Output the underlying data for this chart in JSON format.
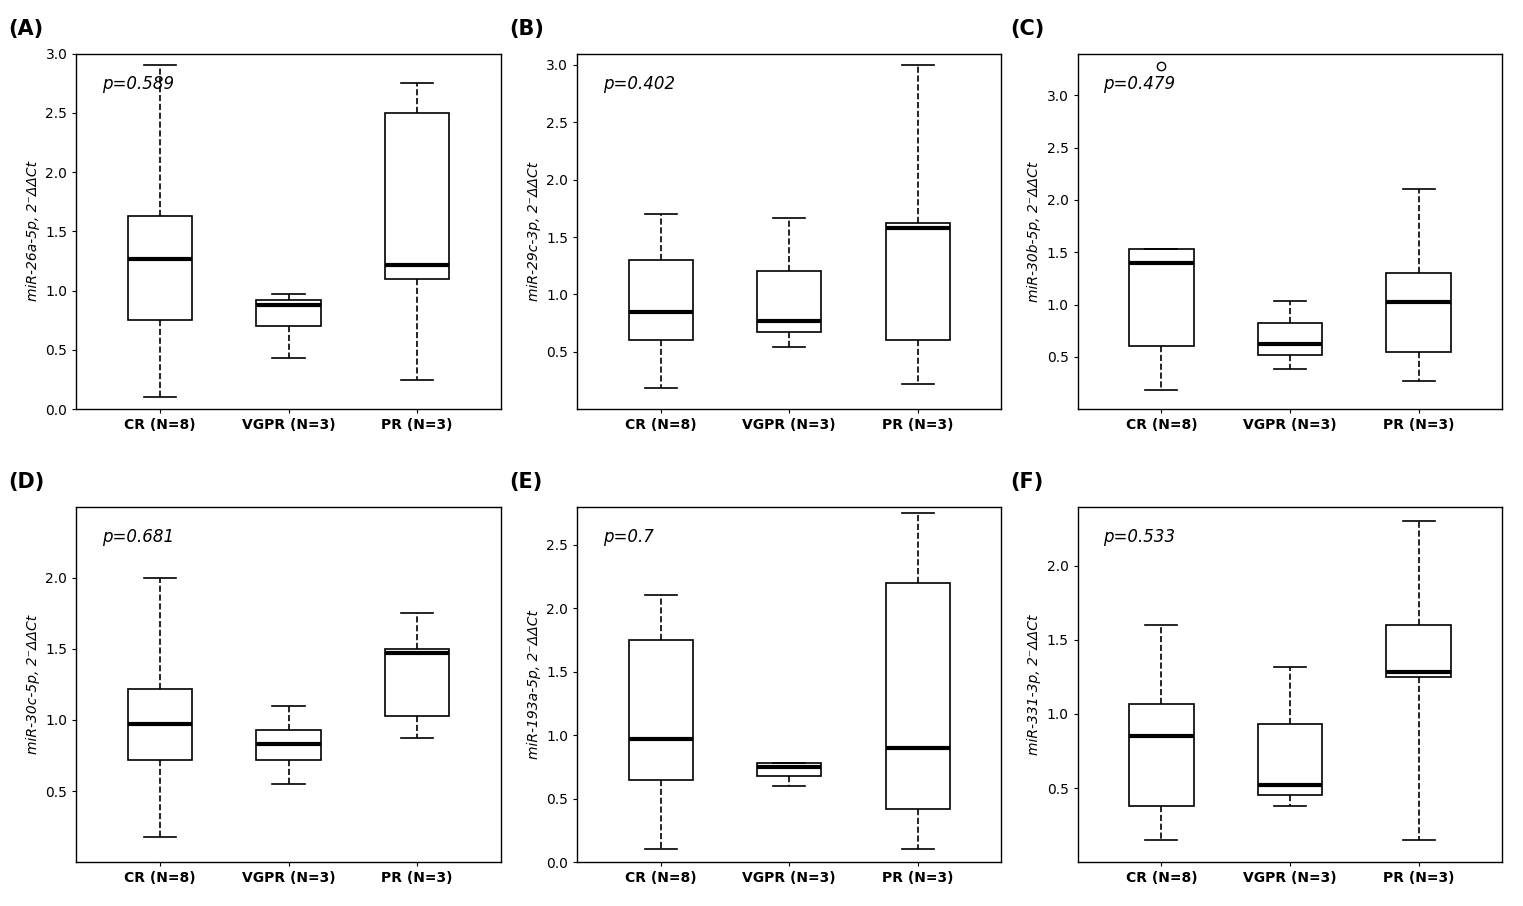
{
  "panels": [
    {
      "label": "(A)",
      "ylabel": "miR-26a-5p, 2⁻ΔΔCt",
      "pvalue": "p=0.589",
      "ylim": [
        0.0,
        3.0
      ],
      "yticks": [
        0.0,
        0.5,
        1.0,
        1.5,
        2.0,
        2.5,
        3.0
      ],
      "groups": {
        "CR": {
          "whislo": 0.1,
          "q1": 0.75,
          "med": 1.27,
          "q3": 1.63,
          "whishi": 2.9,
          "fliers": []
        },
        "VGPR": {
          "whislo": 0.43,
          "q1": 0.7,
          "med": 0.88,
          "q3": 0.92,
          "whishi": 0.97,
          "fliers": []
        },
        "PR": {
          "whislo": 0.25,
          "q1": 1.1,
          "med": 1.22,
          "q3": 2.5,
          "whishi": 2.75,
          "fliers": []
        }
      }
    },
    {
      "label": "(B)",
      "ylabel": "miR-29c-3p, 2⁻ΔΔCt",
      "pvalue": "p=0.402",
      "ylim": [
        0.0,
        3.1
      ],
      "yticks": [
        0.5,
        1.0,
        1.5,
        2.0,
        2.5,
        3.0
      ],
      "groups": {
        "CR": {
          "whislo": 0.18,
          "q1": 0.6,
          "med": 0.85,
          "q3": 1.3,
          "whishi": 1.7,
          "fliers": []
        },
        "VGPR": {
          "whislo": 0.54,
          "q1": 0.67,
          "med": 0.77,
          "q3": 1.2,
          "whishi": 1.67,
          "fliers": []
        },
        "PR": {
          "whislo": 0.22,
          "q1": 0.6,
          "med": 1.58,
          "q3": 1.62,
          "whishi": 3.0,
          "fliers": []
        }
      }
    },
    {
      "label": "(C)",
      "ylabel": "miR-30b-5p, 2⁻ΔΔCt",
      "pvalue": "p=0.479",
      "ylim": [
        0.0,
        3.4
      ],
      "yticks": [
        0.5,
        1.0,
        1.5,
        2.0,
        2.5,
        3.0
      ],
      "groups": {
        "CR": {
          "whislo": 0.18,
          "q1": 0.6,
          "med": 1.4,
          "q3": 1.53,
          "whishi": 1.53,
          "fliers": [
            3.28
          ]
        },
        "VGPR": {
          "whislo": 0.38,
          "q1": 0.52,
          "med": 0.62,
          "q3": 0.82,
          "whishi": 1.03,
          "fliers": []
        },
        "PR": {
          "whislo": 0.27,
          "q1": 0.55,
          "med": 1.02,
          "q3": 1.3,
          "whishi": 2.1,
          "fliers": []
        }
      }
    },
    {
      "label": "(D)",
      "ylabel": "miR-30c-5p, 2⁻ΔΔCt",
      "pvalue": "p=0.681",
      "ylim": [
        0.0,
        2.5
      ],
      "yticks": [
        0.5,
        1.0,
        1.5,
        2.0
      ],
      "groups": {
        "CR": {
          "whislo": 0.18,
          "q1": 0.72,
          "med": 0.97,
          "q3": 1.22,
          "whishi": 2.0,
          "fliers": []
        },
        "VGPR": {
          "whislo": 0.55,
          "q1": 0.72,
          "med": 0.83,
          "q3": 0.93,
          "whishi": 1.1,
          "fliers": []
        },
        "PR": {
          "whislo": 0.87,
          "q1": 1.03,
          "med": 1.47,
          "q3": 1.5,
          "whishi": 1.75,
          "fliers": []
        }
      }
    },
    {
      "label": "(E)",
      "ylabel": "miR-193a-5p, 2⁻ΔΔCt",
      "pvalue": "p=0.7",
      "ylim": [
        0.0,
        2.8
      ],
      "yticks": [
        0.0,
        0.5,
        1.0,
        1.5,
        2.0,
        2.5
      ],
      "groups": {
        "CR": {
          "whislo": 0.1,
          "q1": 0.65,
          "med": 0.97,
          "q3": 1.75,
          "whishi": 2.1,
          "fliers": []
        },
        "VGPR": {
          "whislo": 0.6,
          "q1": 0.68,
          "med": 0.75,
          "q3": 0.78,
          "whishi": 0.78,
          "fliers": []
        },
        "PR": {
          "whislo": 0.1,
          "q1": 0.42,
          "med": 0.9,
          "q3": 2.2,
          "whishi": 2.75,
          "fliers": []
        }
      }
    },
    {
      "label": "(F)",
      "ylabel": "miR-331-3p, 2⁻ΔΔCt",
      "pvalue": "p=0.533",
      "ylim": [
        0.0,
        2.4
      ],
      "yticks": [
        0.5,
        1.0,
        1.5,
        2.0
      ],
      "groups": {
        "CR": {
          "whislo": 0.15,
          "q1": 0.38,
          "med": 0.85,
          "q3": 1.07,
          "whishi": 1.6,
          "fliers": []
        },
        "VGPR": {
          "whislo": 0.38,
          "q1": 0.45,
          "med": 0.52,
          "q3": 0.93,
          "whishi": 1.32,
          "fliers": []
        },
        "PR": {
          "whislo": 0.15,
          "q1": 1.25,
          "med": 1.28,
          "q3": 1.6,
          "whishi": 2.3,
          "fliers": []
        }
      }
    }
  ],
  "group_labels": [
    "CR (N=8)",
    "VGPR (N=3)",
    "PR (N=3)"
  ],
  "background_color": "#ffffff"
}
